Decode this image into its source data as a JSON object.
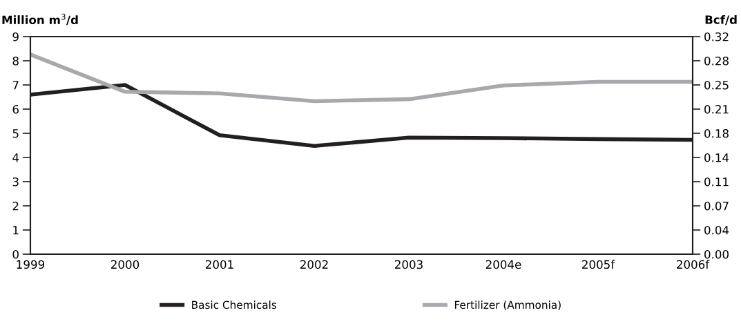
{
  "chart_data": {
    "type": "line",
    "ylabel": "Million m$^{3}$/d",
    "y2label": "Bcf/d",
    "categories": [
      "1999",
      "2000",
      "2001",
      "2002",
      "2003",
      "2004e",
      "2005f",
      "2006f"
    ],
    "series": [
      {
        "name": "Basic Chemicals",
        "color": "#231f20",
        "values": [
          6.6,
          7.0,
          4.92,
          4.48,
          4.82,
          4.8,
          4.76,
          4.73
        ]
      },
      {
        "name": "Fertilizer (Ammonia)",
        "color": "#a7a9ac",
        "values": [
          8.26,
          6.72,
          6.65,
          6.33,
          6.41,
          6.98,
          7.13,
          7.13
        ]
      }
    ],
    "ylim": [
      0,
      9
    ],
    "yticks": [
      0,
      1,
      2,
      3,
      4,
      5,
      6,
      7,
      8,
      9
    ],
    "y2lim": [
      0,
      0.3178
    ],
    "y2ticks": [
      {
        "value": 0,
        "label": "0.00"
      },
      {
        "value": 0.0353,
        "label": "0.04"
      },
      {
        "value": 0.0706,
        "label": "0.07"
      },
      {
        "value": 0.1059,
        "label": "0.11"
      },
      {
        "value": 0.1412,
        "label": "0.14"
      },
      {
        "value": 0.1766,
        "label": "0.18"
      },
      {
        "value": 0.2119,
        "label": "0.21"
      },
      {
        "value": 0.2472,
        "label": "0.25"
      },
      {
        "value": 0.2825,
        "label": "0.28"
      },
      {
        "value": 0.3178,
        "label": "0.32"
      }
    ],
    "grid": false,
    "legend": "bottom",
    "marker": "none",
    "line_style": "solid"
  }
}
